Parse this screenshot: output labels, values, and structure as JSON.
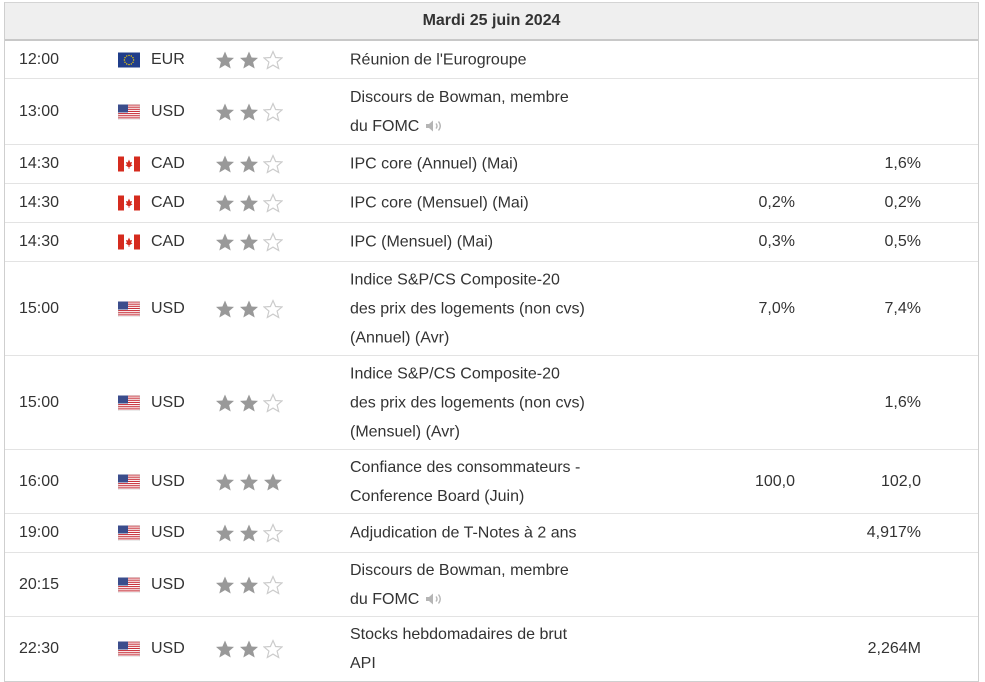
{
  "calendar": {
    "date": "Mardi 25 juin 2024",
    "events": [
      {
        "time": "12:00",
        "flag": "eu-flag-icon",
        "currency": "EUR",
        "stars": 2,
        "lines": [
          "Réunion de l'Eurogroupe"
        ],
        "speech": false,
        "actual": "",
        "previous": ""
      },
      {
        "time": "13:00",
        "flag": "us-flag-icon",
        "currency": "USD",
        "stars": 2,
        "lines": [
          "Discours de Bowman, membre",
          "du FOMC"
        ],
        "speech": true,
        "actual": "",
        "previous": ""
      },
      {
        "time": "14:30",
        "flag": "ca-flag-icon",
        "currency": "CAD",
        "stars": 2,
        "lines": [
          "IPC core (Annuel) (Mai)"
        ],
        "speech": false,
        "actual": "",
        "previous": "1,6%"
      },
      {
        "time": "14:30",
        "flag": "ca-flag-icon",
        "currency": "CAD",
        "stars": 2,
        "lines": [
          "IPC core (Mensuel) (Mai)"
        ],
        "speech": false,
        "actual": "0,2%",
        "previous": "0,2%"
      },
      {
        "time": "14:30",
        "flag": "ca-flag-icon",
        "currency": "CAD",
        "stars": 2,
        "lines": [
          "IPC (Mensuel) (Mai)"
        ],
        "speech": false,
        "actual": "0,3%",
        "previous": "0,5%"
      },
      {
        "time": "15:00",
        "flag": "us-flag-icon",
        "currency": "USD",
        "stars": 2,
        "lines": [
          "Indice S&P/CS Composite-20",
          "des prix des logements (non cvs)",
          "(Annuel) (Avr)"
        ],
        "speech": false,
        "actual": "7,0%",
        "previous": "7,4%"
      },
      {
        "time": "15:00",
        "flag": "us-flag-icon",
        "currency": "USD",
        "stars": 2,
        "lines": [
          "Indice S&P/CS Composite-20",
          "des prix des logements (non cvs)",
          "(Mensuel) (Avr)"
        ],
        "speech": false,
        "actual": "",
        "previous": "1,6%"
      },
      {
        "time": "16:00",
        "flag": "us-flag-icon",
        "currency": "USD",
        "stars": 3,
        "lines": [
          "Confiance des consommateurs -",
          "Conference Board (Juin)"
        ],
        "speech": false,
        "actual": "100,0",
        "previous": "102,0"
      },
      {
        "time": "19:00",
        "flag": "us-flag-icon",
        "currency": "USD",
        "stars": 2,
        "lines": [
          "Adjudication de T-Notes à 2 ans"
        ],
        "speech": false,
        "actual": "",
        "previous": "4,917%"
      },
      {
        "time": "20:15",
        "flag": "us-flag-icon",
        "currency": "USD",
        "stars": 2,
        "lines": [
          "Discours de Bowman, membre",
          "du FOMC"
        ],
        "speech": true,
        "actual": "",
        "previous": ""
      },
      {
        "time": "22:30",
        "flag": "us-flag-icon",
        "currency": "USD",
        "stars": 2,
        "lines": [
          "Stocks hebdomadaires de brut",
          "API"
        ],
        "speech": false,
        "actual": "",
        "previous": "2,264M"
      }
    ]
  },
  "colors": {
    "star_filled": "#999999",
    "star_empty": "#cccccc",
    "header_bg": "#efefef"
  }
}
